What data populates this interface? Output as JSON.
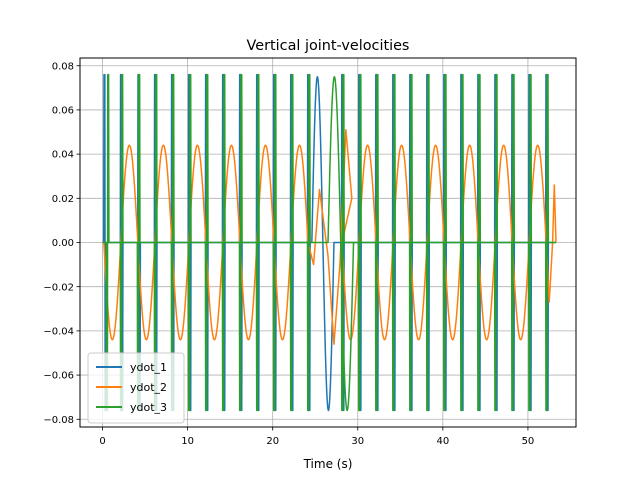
{
  "chart_data": {
    "type": "line",
    "title": "Vertical joint-velocities",
    "xlabel": "Time (s)",
    "ylabel": "",
    "xlim": [
      -2.65,
      55.65
    ],
    "ylim": [
      -0.0835,
      0.0835
    ],
    "x_ticks": [
      0,
      10,
      20,
      30,
      40,
      50
    ],
    "x_tick_labels": [
      "0",
      "10",
      "20",
      "30",
      "40",
      "50"
    ],
    "y_ticks": [
      -0.08,
      -0.06,
      -0.04,
      -0.02,
      0.0,
      0.02,
      0.04,
      0.06,
      0.08
    ],
    "y_tick_labels": [
      "−0.08",
      "−0.06",
      "−0.04",
      "−0.02",
      "0.00",
      "0.02",
      "0.04",
      "0.06",
      "0.08"
    ],
    "grid": true,
    "legend": "lower-left",
    "series": [
      {
        "name": "ydot_1",
        "color": "#1f77b4",
        "amplitude": 0.076,
        "peak_level": 0.035,
        "sign_pattern": "pos-neg",
        "impulse_times": [
          0.15,
          2.1,
          4.15,
          6.1,
          8.1,
          10.1,
          12.1,
          14.1,
          16.1,
          18.1,
          20.1,
          22.1,
          24.1,
          28.1,
          30.1,
          32.1,
          34.1,
          36.1,
          38.1,
          40.1,
          42.1,
          44.1,
          46.1,
          48.1,
          50.1,
          52.1
        ],
        "slow_bump": {
          "start": 24.6,
          "end": 27.2,
          "peak": 0.075,
          "trough": -0.076
        }
      },
      {
        "name": "ydot_2",
        "color": "#ff7f0e",
        "amplitude": 0.044,
        "segments": [
          {
            "start": 0.15,
            "end": 2.15,
            "sign": -1
          },
          {
            "start": 2.15,
            "end": 4.15,
            "sign": 1
          },
          {
            "start": 4.15,
            "end": 6.15,
            "sign": -1
          },
          {
            "start": 6.15,
            "end": 8.15,
            "sign": 1
          },
          {
            "start": 8.15,
            "end": 10.15,
            "sign": -1
          },
          {
            "start": 10.15,
            "end": 12.15,
            "sign": 1
          },
          {
            "start": 12.15,
            "end": 14.15,
            "sign": -1
          },
          {
            "start": 14.15,
            "end": 16.15,
            "sign": 1
          },
          {
            "start": 16.15,
            "end": 18.15,
            "sign": -1
          },
          {
            "start": 18.15,
            "end": 20.15,
            "sign": 1
          },
          {
            "start": 20.15,
            "end": 22.15,
            "sign": -1
          },
          {
            "start": 22.15,
            "end": 24.15,
            "sign": 1
          },
          {
            "start": 28.15,
            "end": 30.15,
            "sign": -1
          },
          {
            "start": 30.15,
            "end": 32.15,
            "sign": 1
          },
          {
            "start": 32.15,
            "end": 34.15,
            "sign": -1
          },
          {
            "start": 34.15,
            "end": 36.15,
            "sign": 1
          },
          {
            "start": 36.15,
            "end": 38.15,
            "sign": -1
          },
          {
            "start": 38.15,
            "end": 40.15,
            "sign": 1
          },
          {
            "start": 40.15,
            "end": 42.15,
            "sign": -1
          },
          {
            "start": 42.15,
            "end": 44.15,
            "sign": 1
          },
          {
            "start": 44.15,
            "end": 46.15,
            "sign": -1
          },
          {
            "start": 46.15,
            "end": 48.15,
            "sign": 1
          },
          {
            "start": 48.15,
            "end": 50.15,
            "sign": -1
          },
          {
            "start": 50.15,
            "end": 52.15,
            "sign": 1
          }
        ],
        "transition_points": [
          [
            24.15,
            0.0
          ],
          [
            24.8,
            -0.01
          ],
          [
            25.5,
            0.024
          ],
          [
            26.5,
            -0.006
          ],
          [
            27.2,
            -0.046
          ],
          [
            27.9,
            -0.01
          ],
          [
            28.6,
            0.051
          ],
          [
            29.3,
            0.02
          ],
          [
            28.15,
            0.0
          ]
        ],
        "tail_points": [
          [
            52.15,
            0.0
          ],
          [
            52.5,
            -0.027
          ],
          [
            52.9,
            0.0
          ],
          [
            53.1,
            0.026
          ],
          [
            53.3,
            0.0
          ]
        ]
      },
      {
        "name": "ydot_3",
        "color": "#2ca02c",
        "amplitude": 0.076,
        "peak_level": 0.035,
        "sign_pattern": "neg-pos",
        "impulse_times": [
          0.45,
          2.1,
          4.1,
          6.1,
          8.1,
          10.1,
          12.1,
          14.1,
          16.1,
          18.1,
          20.1,
          22.1,
          24.1,
          28.1,
          30.1,
          32.1,
          34.1,
          36.1,
          38.1,
          40.1,
          42.1,
          44.1,
          46.1,
          48.1,
          50.1,
          52.1
        ],
        "slow_bump": {
          "start": 26.5,
          "end": 29.5,
          "peak": 0.075,
          "trough": -0.076
        }
      }
    ]
  }
}
